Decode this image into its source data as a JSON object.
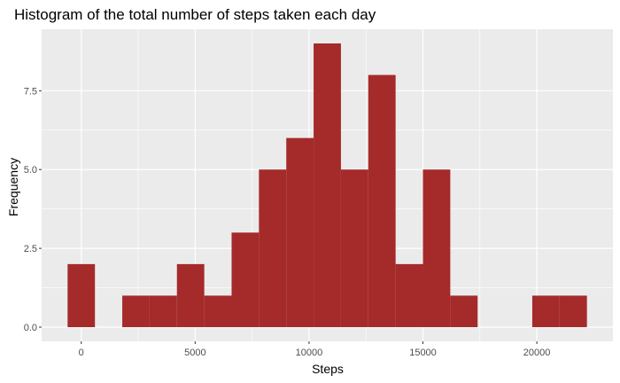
{
  "chart_data": {
    "type": "bar",
    "title": "Histogram of the total number of steps taken each day",
    "xlabel": "Steps",
    "ylabel": "Frequency",
    "bin_width": 1200,
    "bins": [
      {
        "x": 0,
        "count": 2
      },
      {
        "x": 1200,
        "count": 0
      },
      {
        "x": 2400,
        "count": 1
      },
      {
        "x": 3600,
        "count": 1
      },
      {
        "x": 4800,
        "count": 2
      },
      {
        "x": 6000,
        "count": 1
      },
      {
        "x": 7200,
        "count": 3
      },
      {
        "x": 8400,
        "count": 5
      },
      {
        "x": 9600,
        "count": 6
      },
      {
        "x": 10800,
        "count": 9
      },
      {
        "x": 12000,
        "count": 5
      },
      {
        "x": 13200,
        "count": 8
      },
      {
        "x": 14400,
        "count": 2
      },
      {
        "x": 15600,
        "count": 5
      },
      {
        "x": 16800,
        "count": 1
      },
      {
        "x": 18000,
        "count": 0
      },
      {
        "x": 19200,
        "count": 0
      },
      {
        "x": 20400,
        "count": 1
      },
      {
        "x": 21600,
        "count": 1
      }
    ],
    "xlim": [
      -1740,
      23340
    ],
    "ylim": [
      -0.45,
      9.45
    ],
    "x_ticks": [
      0,
      5000,
      10000,
      15000,
      20000
    ],
    "x_tick_labels": [
      "0",
      "5000",
      "10000",
      "15000",
      "20000"
    ],
    "y_ticks": [
      0,
      2.5,
      5,
      7.5
    ],
    "y_tick_labels": [
      "0.0",
      "2.5",
      "5.0",
      "7.5"
    ],
    "grid": true,
    "bar_color": "#a52a2a",
    "panel_color": "#ebebeb",
    "grid_color": "#ffffff"
  }
}
